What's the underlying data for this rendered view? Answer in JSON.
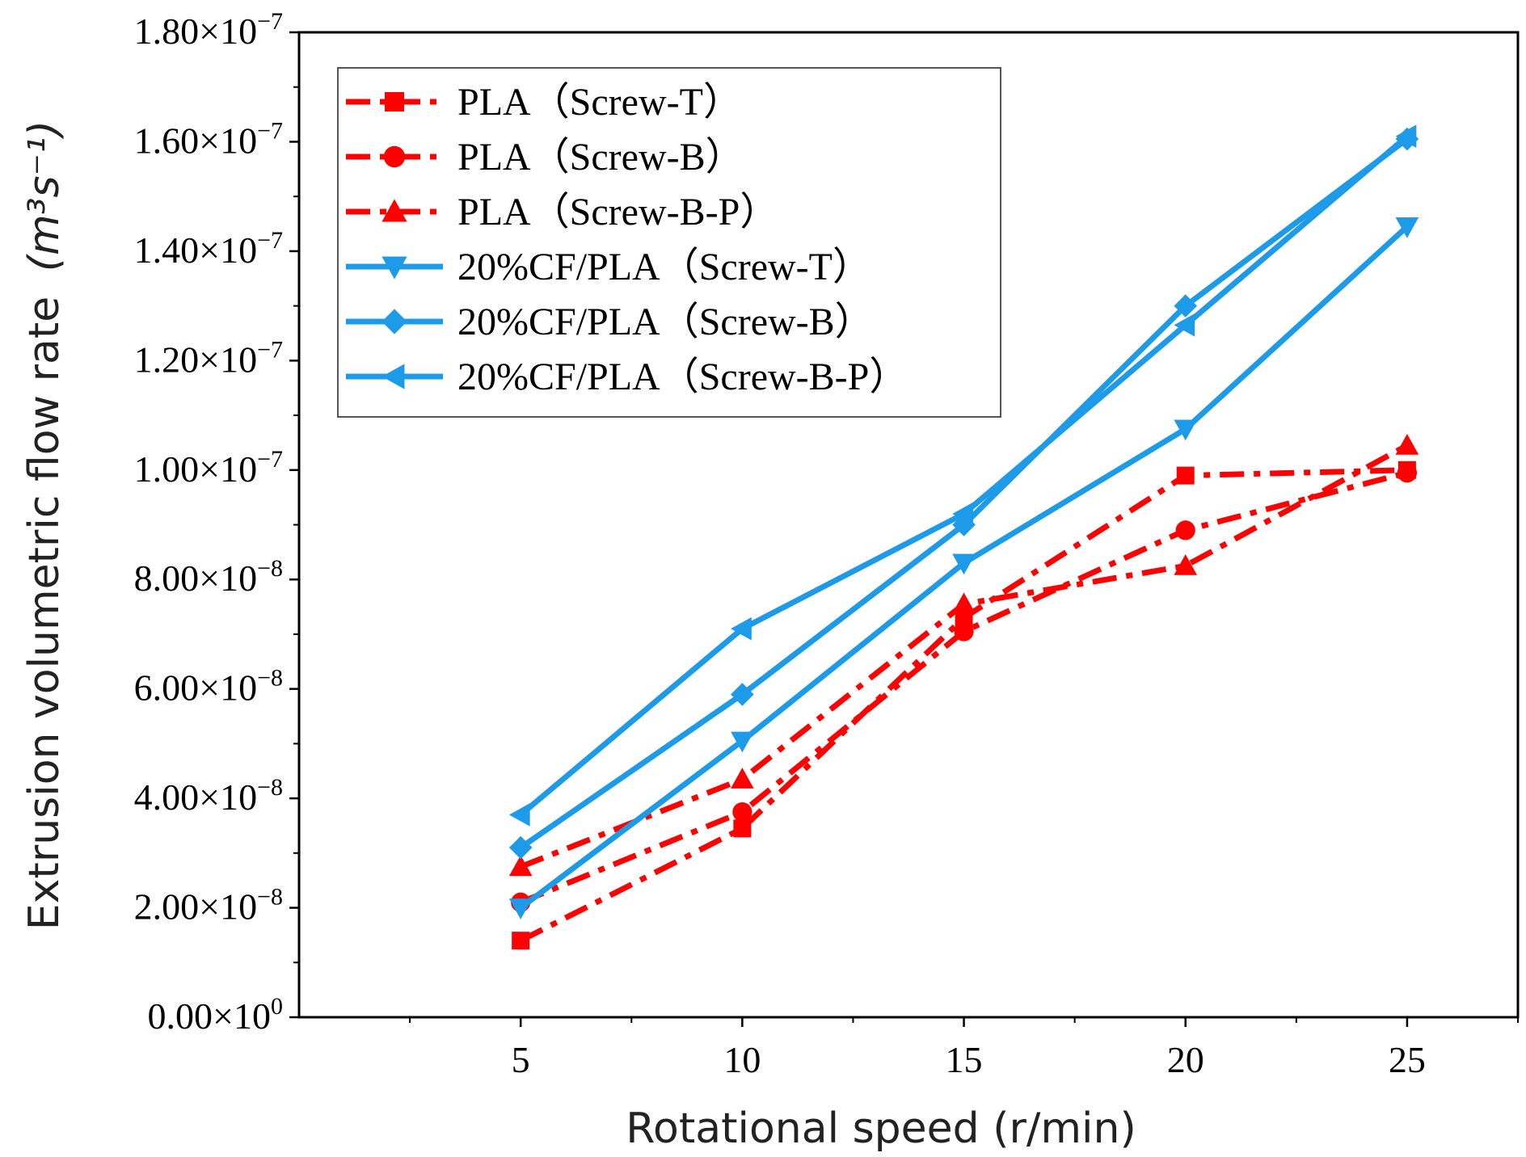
{
  "chart_data": {
    "type": "line",
    "title": "",
    "xlabel": "Rotational speed (r/min)",
    "ylabel": "Extrusion volumetric flow rate",
    "ylabel_unit": "(m³s⁻¹)",
    "xlim": [
      0,
      27.5
    ],
    "ylim": [
      0,
      1.8e-07
    ],
    "x_ticks": [
      5,
      10,
      15,
      20,
      25
    ],
    "x_tick_labels": [
      "5",
      "10",
      "15",
      "20",
      "25"
    ],
    "y_ticks": [
      0,
      2e-08,
      4e-08,
      6e-08,
      8e-08,
      1e-07,
      1.2e-07,
      1.4e-07,
      1.6e-07,
      1.8e-07
    ],
    "y_tick_labels": [
      {
        "mant": "0.00×10",
        "exp": "0"
      },
      {
        "mant": "2.00×10",
        "exp": "−8"
      },
      {
        "mant": "4.00×10",
        "exp": "−8"
      },
      {
        "mant": "6.00×10",
        "exp": "−8"
      },
      {
        "mant": "8.00×10",
        "exp": "−8"
      },
      {
        "mant": "1.00×10",
        "exp": "−7"
      },
      {
        "mant": "1.20×10",
        "exp": "−7"
      },
      {
        "mant": "1.40×10",
        "exp": "−7"
      },
      {
        "mant": "1.60×10",
        "exp": "−7"
      },
      {
        "mant": "1.80×10",
        "exp": "−7"
      }
    ],
    "x": [
      5,
      10,
      15,
      20,
      25
    ],
    "series": [
      {
        "name": "PLA（Screw-T）",
        "color": "#ff0000",
        "marker": "square",
        "dash": "dashdot",
        "values": [
          1.4e-08,
          3.45e-08,
          7.3e-08,
          9.9e-08,
          1e-07
        ]
      },
      {
        "name": "PLA（Screw-B）",
        "color": "#ff0000",
        "marker": "circle",
        "dash": "dashdot",
        "values": [
          2.1e-08,
          3.75e-08,
          7.05e-08,
          8.9e-08,
          9.95e-08
        ]
      },
      {
        "name": "PLA（Screw-B-P）",
        "color": "#ff0000",
        "marker": "triangle-up",
        "dash": "dashdot",
        "values": [
          2.75e-08,
          4.35e-08,
          7.55e-08,
          8.25e-08,
          1.045e-07
        ]
      },
      {
        "name": "20%CF/PLA（Screw-T）",
        "color": "#1e9be8",
        "marker": "triangle-down",
        "dash": "solid",
        "values": [
          2e-08,
          5.05e-08,
          8.3e-08,
          1.075e-07,
          1.445e-07
        ]
      },
      {
        "name": "20%CF/PLA（Screw-B）",
        "color": "#1e9be8",
        "marker": "diamond",
        "dash": "solid",
        "values": [
          3.1e-08,
          5.9e-08,
          9e-08,
          1.3e-07,
          1.605e-07
        ]
      },
      {
        "name": "20%CF/PLA（Screw-B-P）",
        "color": "#1e9be8",
        "marker": "triangle-left",
        "dash": "solid",
        "values": [
          3.7e-08,
          7.1e-08,
          9.2e-08,
          1.265e-07,
          1.61e-07
        ]
      }
    ],
    "legend_position": "top-left",
    "grid": false
  }
}
